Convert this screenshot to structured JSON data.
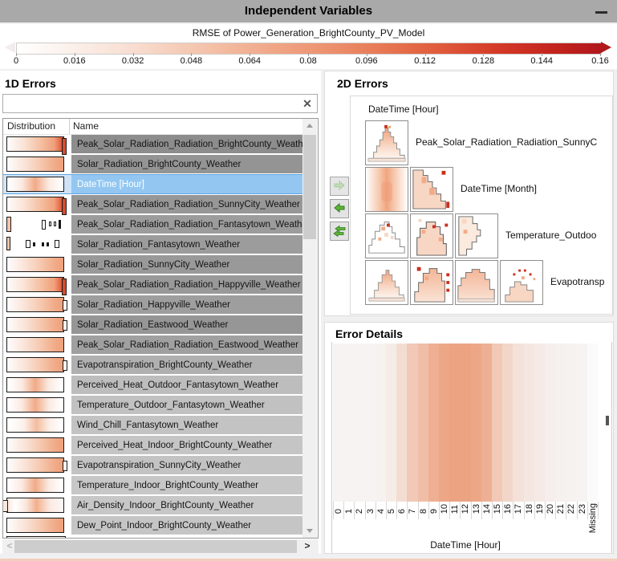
{
  "window": {
    "title": "Independent Variables",
    "minimize": "minimize"
  },
  "colors": {
    "titlebar_gray": "#a9a9a9",
    "accent_salmon": "#efa07c",
    "accent_dark_red": "#b1181b",
    "selection_blue": "#93c7f1",
    "button_green": "#5fb53a"
  },
  "scale": {
    "label": "RMSE of Power_Generation_BrightCounty_PV_Model",
    "ticks": [
      "0",
      "0.016",
      "0.032",
      "0.048",
      "0.064",
      "0.08",
      "0.096",
      "0.112",
      "0.128",
      "0.144",
      "0.16"
    ]
  },
  "panel_1d": {
    "title": "1D Errors",
    "search": {
      "value": "",
      "clear_icon": "✕"
    },
    "columns": [
      "Distribution",
      "Name"
    ],
    "rows": [
      {
        "name": "Peak_Solar_Radiation_Radiation_BrightCounty_Weather",
        "bg": "#8d8d8d",
        "dist": "ramp-end",
        "selected": false
      },
      {
        "name": "Solar_Radiation_BrightCounty_Weather",
        "bg": "#949494",
        "dist": "ramp",
        "selected": false
      },
      {
        "name": "DateTime [Hour]",
        "bg": "#93c7f1",
        "dist": "bump",
        "selected": true
      },
      {
        "name": "Peak_Solar_Radiation_Radiation_SunnyCity_Weather",
        "bg": "#979797",
        "dist": "ramp-end",
        "selected": false
      },
      {
        "name": "Peak_Solar_Radiation_Radiation_Fantasytown_Weather",
        "bg": "#9c9c9c",
        "dist": "sparse-a",
        "selected": false
      },
      {
        "name": "Solar_Radiation_Fantasytown_Weather",
        "bg": "#9c9c9c",
        "dist": "sparse-b",
        "selected": false
      },
      {
        "name": "Solar_Radiation_SunnyCity_Weather",
        "bg": "#999999",
        "dist": "ramp",
        "selected": false
      },
      {
        "name": "Peak_Solar_Radiation_Radiation_Happyville_Weather",
        "bg": "#999999",
        "dist": "ramp-end",
        "selected": false
      },
      {
        "name": "Solar_Radiation_Happyville_Weather",
        "bg": "#9e9e9e",
        "dist": "ramp-notch",
        "selected": false
      },
      {
        "name": "Solar_Radiation_Eastwood_Weather",
        "bg": "#969696",
        "dist": "ramp-notch",
        "selected": false
      },
      {
        "name": "Peak_Solar_Radiation_Radiation_Eastwood_Weather",
        "bg": "#a0a0a0",
        "dist": "ramp",
        "selected": false
      },
      {
        "name": "Evapotranspiration_BrightCounty_Weather",
        "bg": "#b0b0b0",
        "dist": "ramp-notch",
        "selected": false
      },
      {
        "name": "Perceived_Heat_Outdoor_Fantasytown_Weather",
        "bg": "#bdbdbd",
        "dist": "bump",
        "selected": false
      },
      {
        "name": "Temperature_Outdoor_Fantasytown_Weather",
        "bg": "#c1c1c1",
        "dist": "bump",
        "selected": false
      },
      {
        "name": "Wind_Chill_Fantasytown_Weather",
        "bg": "#c3c3c3",
        "dist": "bump-soft",
        "selected": false
      },
      {
        "name": "Perceived_Heat_Indoor_BrightCounty_Weather",
        "bg": "#c5c5c5",
        "dist": "ramp",
        "selected": false
      },
      {
        "name": "Evapotranspiration_SunnyCity_Weather",
        "bg": "#c3c3c3",
        "dist": "ramp-notch",
        "selected": false
      },
      {
        "name": "Temperature_Indoor_BrightCounty_Weather",
        "bg": "#c7c7c7",
        "dist": "bump",
        "selected": false
      },
      {
        "name": "Air_Density_Indoor_BrightCounty_Weather",
        "bg": "#c7c7c7",
        "dist": "cap-bump",
        "selected": false
      },
      {
        "name": "Dew_Point_Indoor_BrightCounty_Weather",
        "bg": "#c5c5c5",
        "dist": "ramp",
        "selected": false
      }
    ]
  },
  "panel_2d": {
    "title": "2D Errors",
    "top_label": "DateTime [Hour]",
    "rows": [
      {
        "label": "Peak_Solar_Radiation_Radiation_SunnyC",
        "cells": [
          "pyramid-red-tip"
        ]
      },
      {
        "label": "DateTime [Month]",
        "cells": [
          "soft-ridge",
          "stair-desc"
        ]
      },
      {
        "label": "Temperature_Outdoo",
        "cells": [
          "gray-mountain",
          "blob-stair",
          "vert-stair"
        ]
      },
      {
        "label": "Evapotransp",
        "cells": [
          "pyramid",
          "stair-asc",
          "broad-hill",
          "dotted-hill"
        ]
      }
    ],
    "buttons": [
      {
        "name": "move-right",
        "icon": "arrow-right-icon",
        "enabled": false
      },
      {
        "name": "move-left",
        "icon": "arrow-left-icon",
        "enabled": true
      },
      {
        "name": "move-all-left",
        "icon": "double-arrow-left-icon",
        "enabled": true
      }
    ]
  },
  "panel_details": {
    "title": "Error Details",
    "xlabel": "DateTime [Hour]",
    "x_ticks": [
      "0",
      "1",
      "2",
      "3",
      "4",
      "5",
      "6",
      "7",
      "8",
      "9",
      "10",
      "11",
      "12",
      "13",
      "14",
      "15",
      "16",
      "17",
      "18",
      "19",
      "20",
      "21",
      "22",
      "23",
      "Missing"
    ]
  },
  "chart_data": [
    {
      "type": "heatmap",
      "title": "Error Details",
      "xlabel": "DateTime [Hour]",
      "x": [
        "0",
        "1",
        "2",
        "3",
        "4",
        "5",
        "6",
        "7",
        "8",
        "9",
        "10",
        "11",
        "12",
        "13",
        "14",
        "15",
        "16",
        "17",
        "18",
        "19",
        "20",
        "21",
        "22",
        "23",
        "Missing"
      ],
      "values": [
        0.02,
        0.02,
        0.02,
        0.02,
        0.03,
        0.08,
        0.22,
        0.4,
        0.5,
        0.63,
        0.71,
        0.74,
        0.74,
        0.7,
        0.62,
        0.4,
        0.28,
        0.18,
        0.13,
        0.1,
        0.06,
        0.04,
        0.03,
        0.02,
        0.0
      ],
      "value_meaning": "relative RMSE intensity per hour (0-1, estimated from color)",
      "colormap": [
        "#f6f5f5",
        "#e98658"
      ],
      "legend_position": "none",
      "grid": false
    },
    {
      "type": "colorbar",
      "title": "RMSE of Power_Generation_BrightCounty_PV_Model",
      "range": [
        0,
        0.16
      ],
      "tick_values": [
        0,
        0.016,
        0.032,
        0.048,
        0.064,
        0.08,
        0.096,
        0.112,
        0.128,
        0.144,
        0.16
      ],
      "colors": [
        "#ffffff",
        "#b1181b"
      ]
    }
  ]
}
